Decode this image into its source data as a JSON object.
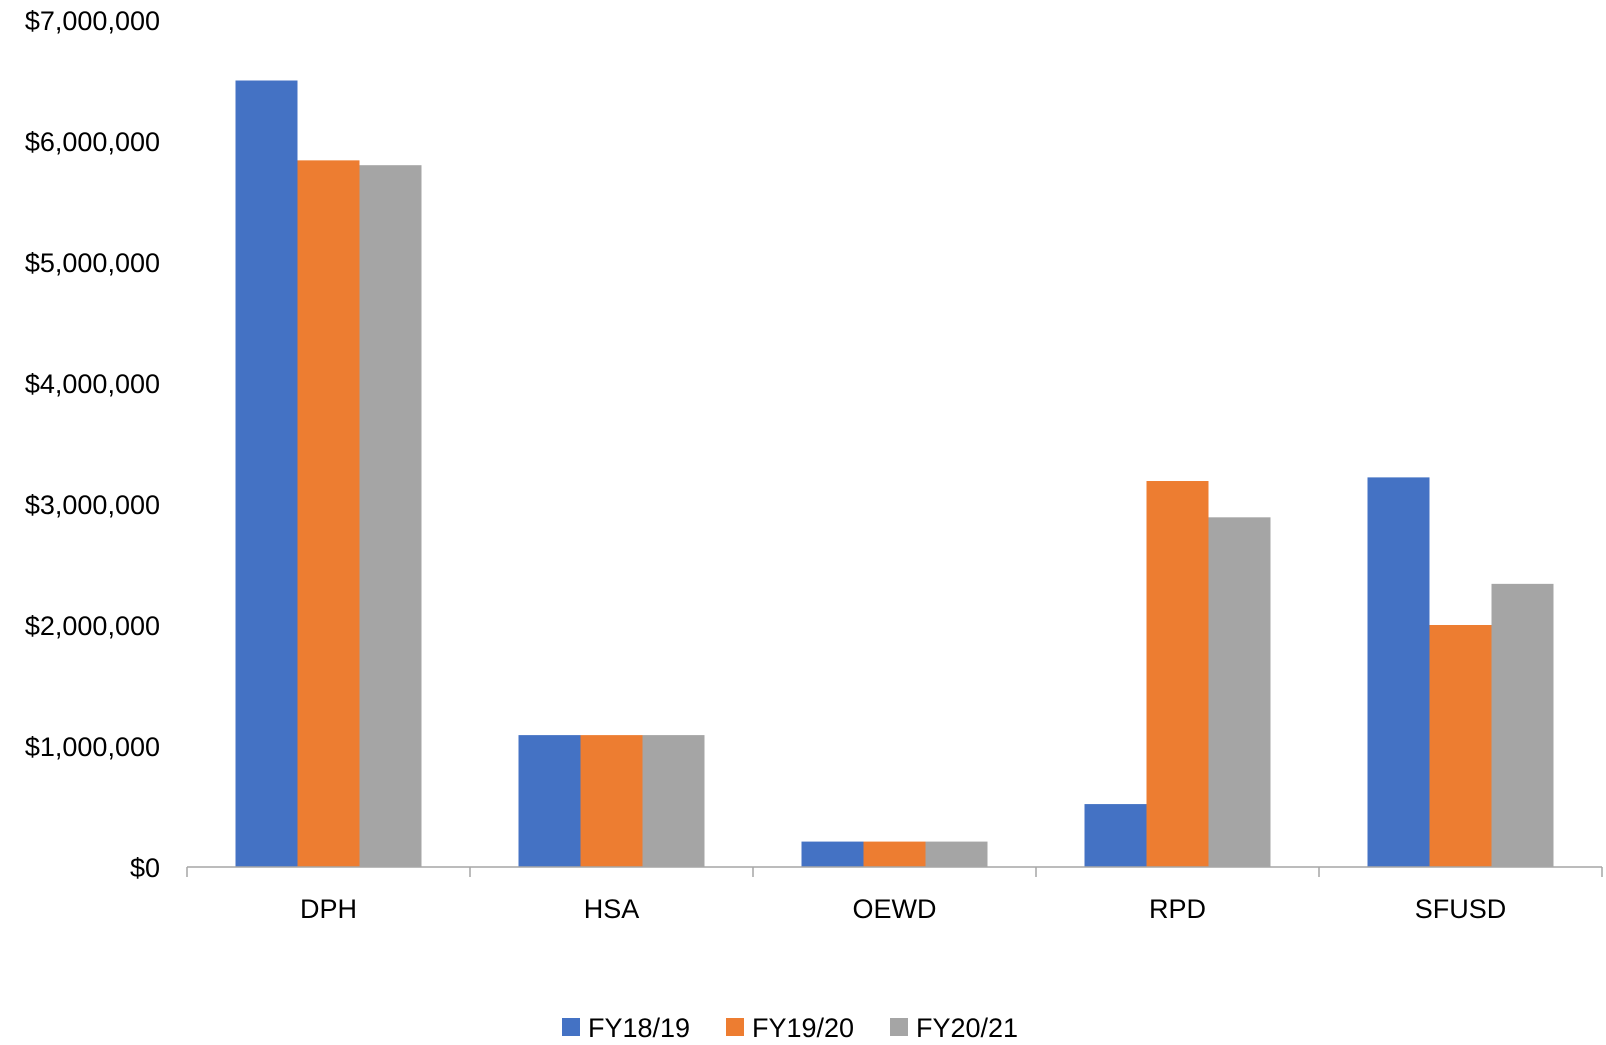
{
  "chart_data": {
    "type": "bar",
    "categories": [
      "DPH",
      "HSA",
      "OEWD",
      "RPD",
      "SFUSD"
    ],
    "series": [
      {
        "name": "FY18/19",
        "color": "#4472C4",
        "values": [
          6500000,
          1090000,
          210000,
          520000,
          3220000
        ]
      },
      {
        "name": "FY19/20",
        "color": "#ED7D31",
        "values": [
          5840000,
          1090000,
          210000,
          3190000,
          2000000
        ]
      },
      {
        "name": "FY20/21",
        "color": "#A5A5A5",
        "values": [
          5800000,
          1090000,
          210000,
          2890000,
          2340000
        ]
      }
    ],
    "ylim": [
      0,
      7000000
    ],
    "y_ticks": [
      0,
      1000000,
      2000000,
      3000000,
      4000000,
      5000000,
      6000000,
      7000000
    ],
    "y_tick_labels": [
      "$0",
      "$1,000,000",
      "$2,000,000",
      "$3,000,000",
      "$4,000,000",
      "$5,000,000",
      "$6,000,000",
      "$7,000,000"
    ],
    "title": "",
    "xlabel": "",
    "ylabel": "",
    "grid": false,
    "legend_position": "bottom"
  }
}
